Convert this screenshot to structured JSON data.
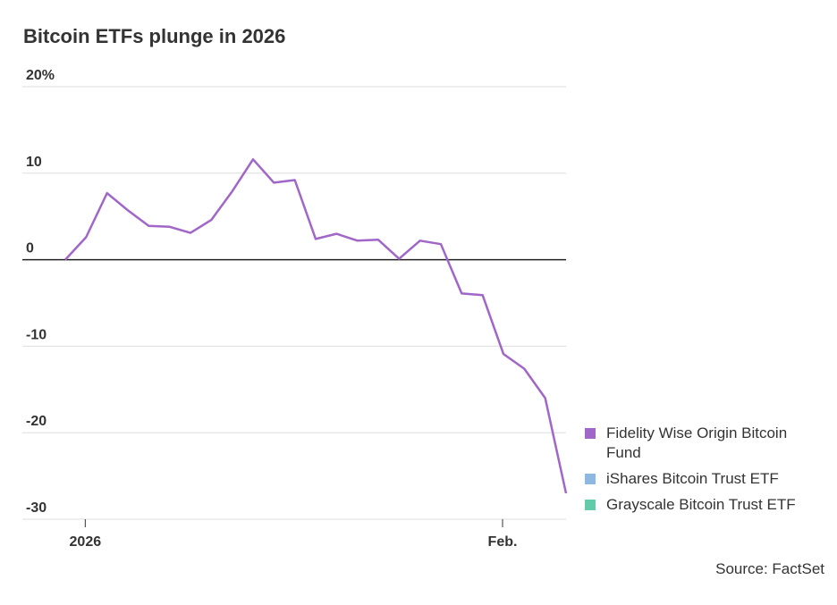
{
  "chart_data": {
    "type": "line",
    "title": "Bitcoin ETFs plunge in 2026",
    "source": "Source: FactSet",
    "categories": [
      null,
      "2026",
      null,
      null,
      null,
      null,
      null,
      null,
      null,
      null,
      null,
      null,
      null,
      null,
      null,
      null,
      null,
      null,
      null,
      null,
      null,
      "Feb.",
      null,
      null,
      null
    ],
    "series": [
      {
        "name": "Fidelity Wise Origin Bitcoin Fund",
        "color": "#a066c8",
        "values": [
          0,
          2.6,
          7.7,
          5.7,
          3.9,
          3.8,
          3.1,
          4.6,
          7.9,
          11.6,
          8.9,
          9.2,
          2.4,
          3.0,
          2.2,
          2.3,
          0.1,
          2.2,
          1.8,
          -3.9,
          -4.1,
          -10.9,
          -12.6,
          -16.0,
          -27.0
        ]
      },
      {
        "name": "iShares Bitcoin Trust ETF",
        "color": "#8cb8e2",
        "values": [
          null,
          null,
          null,
          null,
          null,
          null,
          null,
          null,
          null,
          null,
          null,
          null,
          null,
          null,
          null,
          null,
          null,
          null,
          null,
          null,
          null,
          null,
          null,
          null,
          null
        ]
      },
      {
        "name": "Grayscale Bitcoin Trust ETF",
        "color": "#63cba8",
        "values": [
          null,
          null,
          null,
          null,
          null,
          null,
          null,
          null,
          null,
          null,
          null,
          null,
          null,
          null,
          null,
          null,
          null,
          null,
          null,
          null,
          null,
          null,
          null,
          null,
          null
        ]
      }
    ],
    "ylim": [
      -30,
      20
    ],
    "yticks": [
      {
        "value": 20,
        "label": "20%"
      },
      10,
      0,
      -10,
      -20,
      -30
    ],
    "grid": true
  }
}
